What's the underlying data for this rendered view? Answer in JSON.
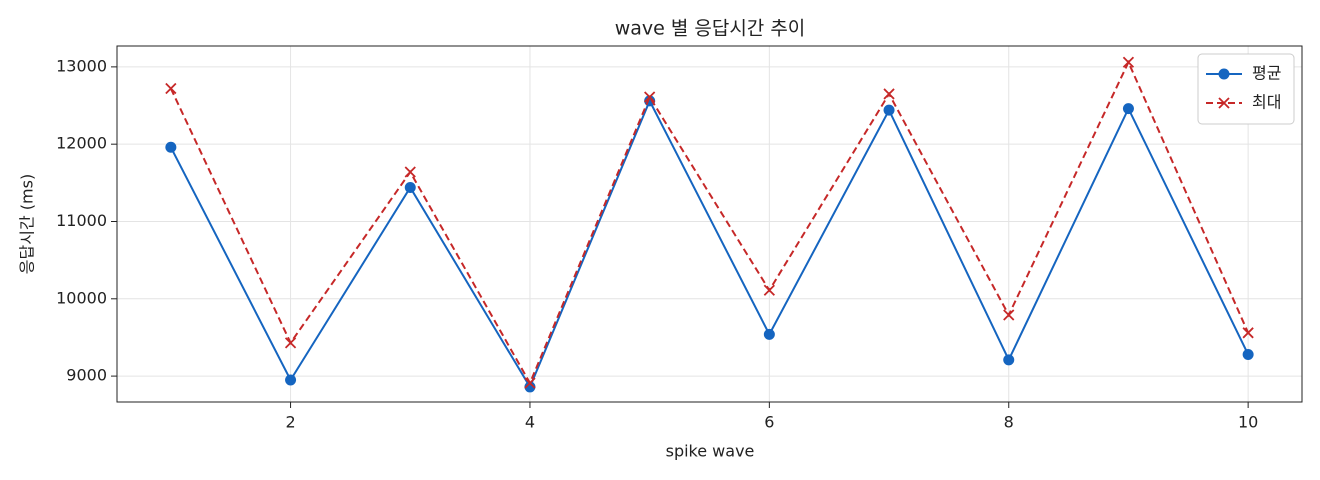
{
  "chart_data": {
    "type": "line",
    "title": "wave 별 응답시간 추이",
    "xlabel": "spike wave",
    "ylabel": "응답시간 (ms)",
    "x": [
      1,
      2,
      3,
      4,
      5,
      6,
      7,
      8,
      9,
      10
    ],
    "series": [
      {
        "name": "평균",
        "color": "#1565c0",
        "marker": "o",
        "linestyle": "solid",
        "values": [
          11960,
          8950,
          11440,
          8860,
          12560,
          9540,
          12440,
          9210,
          12460,
          9280
        ]
      },
      {
        "name": "최대",
        "color": "#c62828",
        "marker": "x",
        "linestyle": "dashed",
        "values": [
          12720,
          9430,
          11640,
          8910,
          12610,
          10110,
          12650,
          9790,
          13060,
          9560
        ]
      }
    ],
    "xlim": [
      0.55,
      10.45
    ],
    "ylim": [
      8665,
      13270
    ],
    "xticks": [
      2,
      4,
      6,
      8,
      10
    ],
    "yticks": [
      9000,
      10000,
      11000,
      12000,
      13000
    ],
    "grid": true,
    "legend": "upper right"
  }
}
